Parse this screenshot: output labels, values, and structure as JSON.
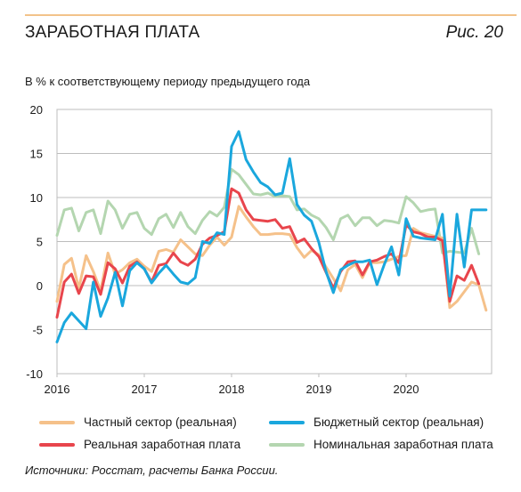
{
  "header": {
    "title": "ЗАРАБОТНАЯ ПЛАТА",
    "figure_number": "Рис. 20",
    "subtitle": "В % к соответствующему периоду предыдущего года"
  },
  "footer": {
    "source": "Источники: Росстат, расчеты Банка России."
  },
  "chart_data": {
    "type": "line",
    "title": "ЗАРАБОТНАЯ ПЛАТА",
    "ylabel": "В % к соответствующему периоду предыдущего года",
    "ylim": [
      -10,
      20
    ],
    "yticks": [
      -10,
      -5,
      0,
      5,
      10,
      15,
      20
    ],
    "xlim": [
      2016,
      2020.98
    ],
    "xticks": [
      2016,
      2017,
      2018,
      2019,
      2020
    ],
    "grid": "horizontal",
    "legend_position": "bottom",
    "x_start": "2016-01",
    "x_step": "month",
    "series": [
      {
        "name": "Частный сектор (реальная)",
        "color": "#f5c18a",
        "values": [
          -1.8,
          2.4,
          3.1,
          -0.3,
          3.4,
          1.6,
          -0.6,
          3.7,
          1.3,
          1.8,
          2.6,
          3.0,
          2.2,
          1.6,
          3.9,
          4.1,
          3.8,
          5.2,
          4.4,
          3.6,
          3.4,
          4.6,
          5.5,
          4.6,
          5.5,
          9.0,
          7.8,
          6.7,
          5.8,
          5.8,
          5.9,
          5.9,
          5.8,
          4.3,
          3.2,
          4.0,
          3.5,
          2.1,
          0.8,
          -0.6,
          1.8,
          2.4,
          0.9,
          2.6,
          2.6,
          2.7,
          3.0,
          3.3,
          3.4,
          6.5,
          6.0,
          5.8,
          5.6,
          5.4,
          -2.5,
          -1.8,
          -0.7,
          0.4,
          0.1,
          -2.8
        ]
      },
      {
        "name": "Бюджетный сектор (реальная)",
        "color": "#1aa7dd",
        "values": [
          -6.4,
          -4.2,
          -3.1,
          -4.0,
          -4.9,
          0.4,
          -3.5,
          -1.4,
          1.5,
          -2.3,
          1.7,
          2.6,
          1.9,
          0.3,
          1.4,
          2.3,
          1.3,
          0.4,
          0.2,
          0.9,
          5.0,
          4.8,
          6.0,
          5.8,
          15.8,
          17.5,
          14.3,
          12.9,
          11.7,
          11.2,
          10.3,
          10.5,
          14.4,
          9.2,
          8.0,
          7.3,
          4.9,
          1.6,
          -0.8,
          1.8,
          2.3,
          2.7,
          2.7,
          2.9,
          0.1,
          2.4,
          4.4,
          1.2,
          7.6,
          5.6,
          5.4,
          5.3,
          5.2,
          8.1,
          -1.2,
          8.1,
          2.1,
          8.6,
          8.6,
          8.6
        ]
      },
      {
        "name": "Реальная заработная плата",
        "color": "#e8454c",
        "values": [
          -3.6,
          0.4,
          1.3,
          -0.9,
          1.1,
          1.0,
          -1.0,
          2.6,
          1.9,
          0.3,
          2.2,
          2.7,
          1.9,
          0.4,
          2.3,
          2.5,
          3.7,
          2.7,
          2.3,
          3.0,
          4.7,
          5.4,
          5.7,
          6.1,
          11.0,
          10.5,
          8.6,
          7.5,
          7.4,
          7.3,
          7.5,
          6.5,
          6.7,
          4.9,
          5.3,
          4.2,
          3.3,
          1.5,
          -0.3,
          1.6,
          2.7,
          2.8,
          1.2,
          2.7,
          2.9,
          3.3,
          3.6,
          2.6,
          6.9,
          6.1,
          5.9,
          5.5,
          5.5,
          5.1,
          -1.8,
          1.1,
          0.6,
          2.3,
          0.2
        ]
      },
      {
        "name": "Номинальная заработная плата",
        "color": "#b4d6b0",
        "values": [
          5.7,
          8.6,
          8.8,
          6.2,
          8.3,
          8.6,
          5.9,
          9.6,
          8.6,
          6.5,
          8.1,
          8.3,
          6.5,
          5.8,
          7.6,
          8.1,
          6.6,
          8.3,
          6.7,
          5.9,
          7.4,
          8.4,
          7.9,
          8.9,
          13.2,
          12.6,
          11.5,
          10.4,
          10.3,
          10.5,
          10.1,
          10.2,
          10.1,
          8.6,
          8.7,
          8.0,
          7.6,
          6.6,
          5.2,
          7.6,
          8.0,
          6.8,
          7.7,
          7.7,
          6.8,
          7.4,
          7.3,
          7.1,
          10.1,
          9.4,
          8.4,
          8.6,
          8.7,
          3.7,
          3.9,
          3.8,
          3.7,
          6.5,
          3.6
        ]
      }
    ]
  }
}
